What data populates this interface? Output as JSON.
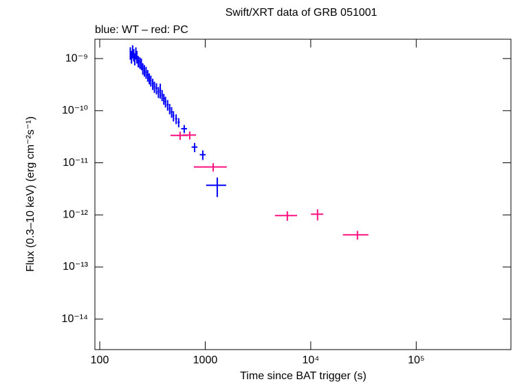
{
  "chart_data": {
    "type": "scatter",
    "title": "Swift/XRT data of GRB 051001",
    "subtitle": "blue: WT – red: PC",
    "x_label": "Time since BAT trigger (s)",
    "y_label": "Flux (0.3–10 keV) (erg cm⁻²s⁻¹)",
    "xscale": "log",
    "yscale": "log",
    "xlim": [
      90,
      790000
    ],
    "ylim": [
      2.6e-15,
      2.35e-09
    ],
    "xticks": [
      100,
      1000,
      {
        "value": 10000,
        "label": "10⁴"
      },
      {
        "value": 100000,
        "label": "10⁵"
      }
    ],
    "yticks": [
      {
        "value": 1e-14,
        "label": "10⁻¹⁴"
      },
      {
        "value": 1e-13,
        "label": "10⁻¹³"
      },
      {
        "value": 1e-12,
        "label": "10⁻¹²"
      },
      {
        "value": 1e-11,
        "label": "10⁻¹¹"
      },
      {
        "value": 1e-10,
        "label": "10⁻¹⁰"
      },
      {
        "value": 1e-09,
        "label": "10⁻⁹"
      }
    ],
    "series": [
      {
        "color": "#0000ff",
        "x": [
          195,
          200,
          205,
          210,
          215,
          220,
          225,
          232,
          240,
          248,
          256,
          265,
          275,
          285,
          295,
          305,
          318,
          330,
          345,
          360,
          375,
          390,
          405,
          420,
          440,
          460,
          480,
          500,
          530,
          560,
          632,
          793,
          948,
          1300
        ],
        "xerr": [
          3,
          3,
          3,
          3,
          3,
          3,
          3,
          4,
          4,
          4,
          4,
          4,
          5,
          5,
          5,
          5,
          6,
          6,
          7,
          7,
          7,
          7,
          8,
          8,
          9,
          9,
          10,
          10,
          12,
          14,
          40,
          50,
          60,
          280
        ],
        "values": [
          1.3e-09,
          1.1e-09,
          1.4e-09,
          1.2e-09,
          1e-09,
          1.3e-09,
          1.1e-09,
          9e-10,
          8.5e-10,
          8e-10,
          6.5e-10,
          6e-10,
          5.5e-10,
          4.8e-10,
          4.2e-10,
          3.8e-10,
          3.3e-10,
          2.9e-10,
          2.7e-10,
          2.3e-10,
          2.5e-10,
          2e-10,
          1.7e-10,
          1.5e-10,
          1.3e-10,
          1.1e-10,
          9.5e-11,
          8e-11,
          7e-11,
          6e-11,
          4.5e-11,
          2e-11,
          1.43e-11,
          3.7e-12
        ],
        "yerr": [
          3.5e-10,
          3e-10,
          4e-10,
          3.2e-10,
          2.6e-10,
          3.4e-10,
          3e-10,
          2.2e-10,
          2.1e-10,
          2e-10,
          1.6e-10,
          1.5e-10,
          1.4e-10,
          1.2e-10,
          1e-10,
          9e-11,
          8e-11,
          7e-11,
          6.5e-11,
          5.5e-11,
          8e-11,
          4.8e-11,
          4e-11,
          3.5e-11,
          3e-11,
          2.5e-11,
          2.2e-11,
          1.8e-11,
          1.5e-11,
          1.2e-11,
          8e-12,
          4e-12,
          3e-12,
          1.5e-12
        ]
      },
      {
        "color": "#ff1080",
        "x": [
          578,
          713,
          1190,
          6000,
          11600,
          27700
        ],
        "xerr": [
          110,
          105,
          410,
          1420,
          1550,
          7500
        ],
        "values": [
          3.35e-11,
          3.4e-11,
          8.3e-12,
          9.7e-13,
          1.03e-12,
          4.14e-13
        ],
        "yerr": [
          6e-12,
          6e-12,
          1.5e-12,
          2e-13,
          2.5e-13,
          8e-14
        ]
      }
    ]
  }
}
